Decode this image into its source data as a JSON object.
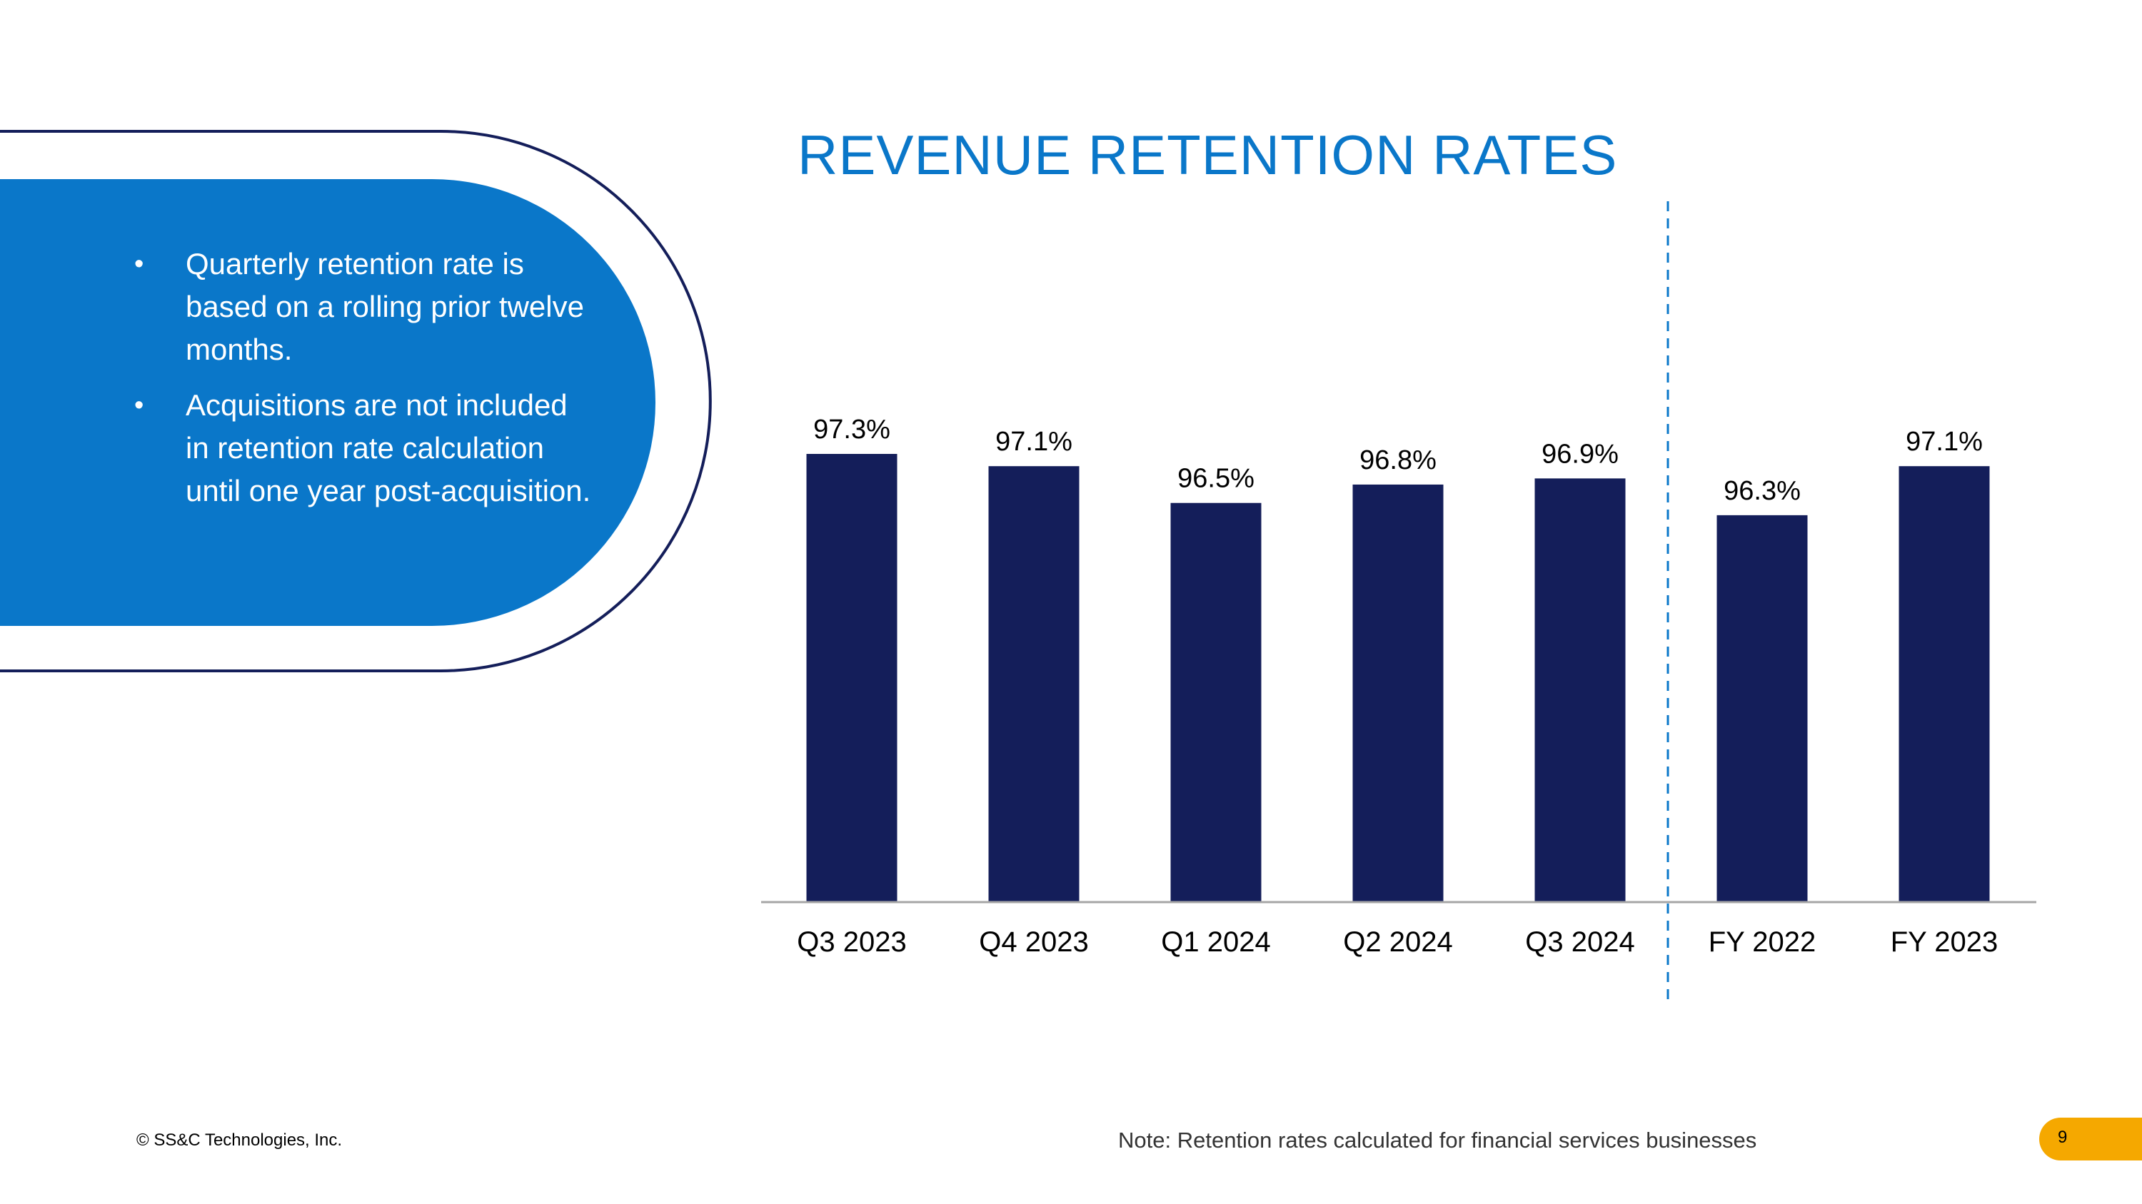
{
  "title": "REVENUE RETENTION RATES",
  "callout": {
    "bullets": [
      "Quarterly retention rate is based on a rolling prior twelve months.",
      "Acquisitions are not included in retention rate calculation until one year post-acquisition."
    ]
  },
  "colors": {
    "bar": "#141e5a",
    "title": "#0a77c9",
    "callout_fill": "#0a77c9",
    "callout_outline": "#141e5a",
    "divider": "#0a77c9",
    "page_tab": "#f5a800"
  },
  "chart_data": {
    "type": "bar",
    "title": "REVENUE RETENTION RATES",
    "categories": [
      "Q3 2023",
      "Q4 2023",
      "Q1 2024",
      "Q2 2024",
      "Q3 2024",
      "FY 2022",
      "FY 2023"
    ],
    "values": [
      97.3,
      97.1,
      96.5,
      96.8,
      96.9,
      96.3,
      97.1
    ],
    "data_labels": [
      "97.3%",
      "97.1%",
      "96.5%",
      "96.8%",
      "96.9%",
      "96.3%",
      "97.1%"
    ],
    "ylim": [
      90,
      97.3
    ],
    "grid": false,
    "legend": "none",
    "divider_after_category": "Q3 2024"
  },
  "footer": {
    "copyright": "© SS&C Technologies, Inc.",
    "note": "Note: Retention rates calculated for financial services businesses",
    "page_number": "9"
  }
}
